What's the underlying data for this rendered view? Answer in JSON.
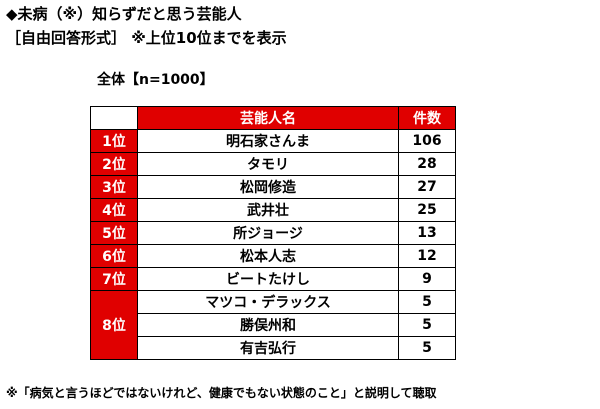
{
  "title": "◆未病（※）知らずだと思う芸能人",
  "subtitle": "［自由回答形式］ ※上位10位までを表示",
  "total_label": "全体【n=1000】",
  "table": {
    "header_name": "芸能人名",
    "header_count": "件数",
    "rows": [
      {
        "rank": "1位",
        "name": "明石家さんま",
        "count": "106"
      },
      {
        "rank": "2位",
        "name": "タモリ",
        "count": "28"
      },
      {
        "rank": "3位",
        "name": "松岡修造",
        "count": "27"
      },
      {
        "rank": "4位",
        "name": "武井壮",
        "count": "25"
      },
      {
        "rank": "5位",
        "name": "所ジョージ",
        "count": "13"
      },
      {
        "rank": "6位",
        "name": "松本人志",
        "count": "12"
      },
      {
        "rank": "7位",
        "name": "ビートたけし",
        "count": "9"
      },
      {
        "rank": "8位",
        "name": "マツコ・デラックス",
        "count": "5"
      },
      {
        "rank": "",
        "name": "勝俣州和",
        "count": "5"
      },
      {
        "rank": "",
        "name": "有吉弘行",
        "count": "5"
      }
    ]
  },
  "footnote": "※「病気と言うほどではないけれど、健康でもない状態のこと」と説明して聴取",
  "colors": {
    "accent": "#e00000",
    "header_text": "#ffffff"
  }
}
